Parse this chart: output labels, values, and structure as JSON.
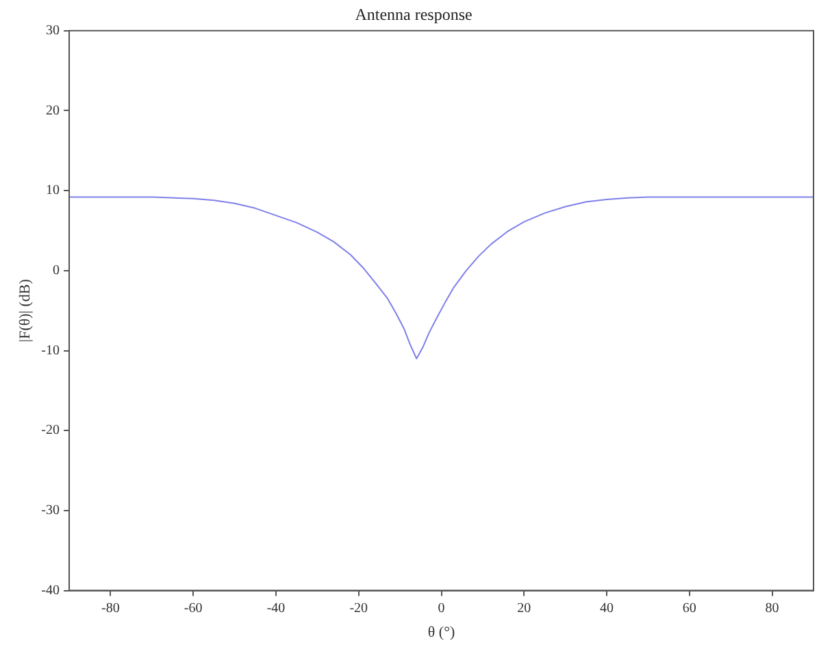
{
  "chart_data": {
    "type": "line",
    "title": "Antenna response",
    "xlabel": "θ (°)",
    "ylabel": "|F(θ)| (dB)",
    "xlim": [
      -90,
      90
    ],
    "ylim": [
      -40,
      30
    ],
    "xticks": [
      -80,
      -60,
      -40,
      -20,
      0,
      20,
      40,
      60,
      80
    ],
    "yticks": [
      -40,
      -30,
      -20,
      -10,
      0,
      10,
      20,
      30
    ],
    "grid": false,
    "marker": "none",
    "legend": false,
    "series": [
      {
        "color": "#7f7fea",
        "x": [
          -90,
          -80,
          -70,
          -60,
          -55,
          -50,
          -45,
          -40,
          -35,
          -30,
          -26,
          -22,
          -19,
          -16,
          -13,
          -11,
          -9,
          -7.5,
          -6,
          -4.5,
          -3,
          -1,
          1,
          3,
          6,
          9,
          12,
          16,
          20,
          25,
          30,
          35,
          40,
          45,
          50,
          55,
          60,
          70,
          80,
          90
        ],
        "values": [
          9.2,
          9.2,
          9.2,
          9.0,
          8.8,
          8.4,
          7.8,
          6.9,
          6.0,
          4.8,
          3.6,
          2.0,
          0.4,
          -1.5,
          -3.5,
          -5.3,
          -7.3,
          -9.3,
          -11,
          -9.6,
          -7.8,
          -5.8,
          -3.9,
          -2.1,
          0.0,
          1.8,
          3.3,
          4.9,
          6.1,
          7.2,
          8.0,
          8.6,
          8.9,
          9.1,
          9.2,
          9.2,
          9.2,
          9.2,
          9.2,
          9.2
        ]
      }
    ]
  }
}
